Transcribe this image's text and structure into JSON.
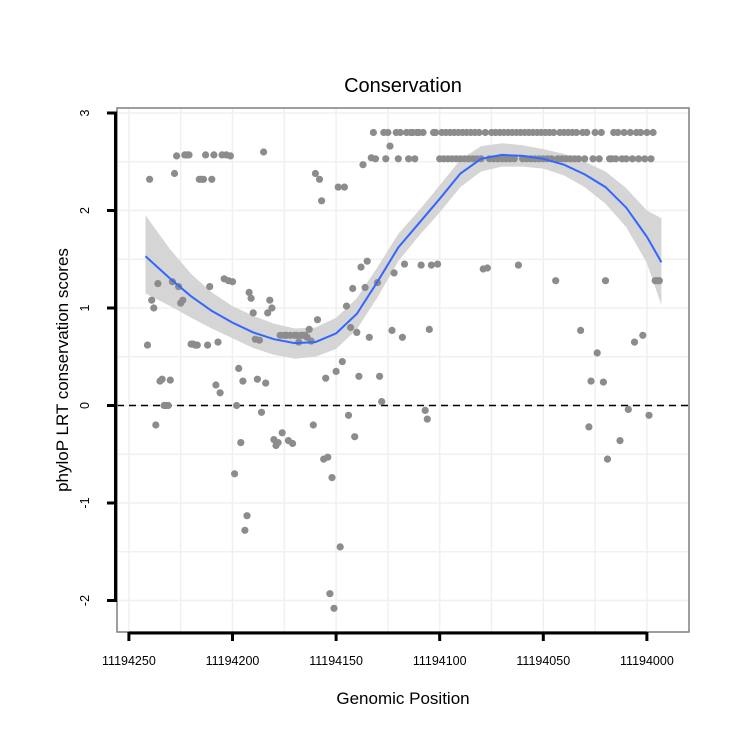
{
  "chart_data": {
    "type": "scatter",
    "title": "Conservation",
    "xlabel": "Genomic Position",
    "ylabel": "phyloP LRT conservation scores",
    "x_reversed": true,
    "xlim": [
      11194262,
      11193984
    ],
    "ylim": [
      -2.3,
      3
    ],
    "x_ticks": [
      11194250,
      11194200,
      11194150,
      11194100,
      11194050,
      11194000
    ],
    "x_tick_labels": [
      "11194250",
      "11194200",
      "11194150",
      "11194100",
      "11194050",
      "11194000"
    ],
    "y_ticks": [
      -2,
      -1,
      0,
      1,
      2,
      3
    ],
    "y_tick_labels": [
      "-2",
      "-1",
      "0",
      "1",
      "2",
      "3"
    ],
    "grid": true,
    "reference_line": {
      "y": 0,
      "style": "dashed",
      "color": "#000000"
    },
    "colors": {
      "points": "#8c8c8c",
      "smooth": "#3366ff",
      "band": "#d3d3d3",
      "panel_border": "#7f7f7f",
      "grid": "#f0f0f0"
    },
    "smooth": {
      "x": [
        11194242,
        11194230,
        11194220,
        11194210,
        11194200,
        11194190,
        11194180,
        11194170,
        11194160,
        11194150,
        11194140,
        11194130,
        11194120,
        11194110,
        11194100,
        11194090,
        11194080,
        11194070,
        11194060,
        11194050,
        11194040,
        11194030,
        11194020,
        11194010,
        11194000,
        11193993
      ],
      "y": [
        1.53,
        1.3,
        1.12,
        0.97,
        0.85,
        0.75,
        0.68,
        0.64,
        0.65,
        0.74,
        0.94,
        1.27,
        1.62,
        1.87,
        2.12,
        2.38,
        2.53,
        2.57,
        2.56,
        2.53,
        2.47,
        2.37,
        2.24,
        2.03,
        1.73,
        1.47
      ],
      "ci_upper": [
        1.95,
        1.6,
        1.35,
        1.16,
        1.02,
        0.92,
        0.84,
        0.79,
        0.8,
        0.9,
        1.1,
        1.42,
        1.76,
        2.0,
        2.26,
        2.52,
        2.66,
        2.69,
        2.67,
        2.63,
        2.58,
        2.5,
        2.4,
        2.23,
        2.0,
        1.92
      ],
      "ci_lower": [
        1.15,
        1.02,
        0.9,
        0.79,
        0.69,
        0.59,
        0.52,
        0.48,
        0.5,
        0.58,
        0.78,
        1.11,
        1.48,
        1.74,
        1.98,
        2.24,
        2.4,
        2.45,
        2.45,
        2.43,
        2.36,
        2.24,
        2.07,
        1.83,
        1.46,
        1.03
      ]
    },
    "points": [
      [
        11194241,
        0.62
      ],
      [
        11194240,
        2.32
      ],
      [
        11194239,
        1.08
      ],
      [
        11194238,
        1.0
      ],
      [
        11194237,
        -0.2
      ],
      [
        11194236,
        1.25
      ],
      [
        11194235,
        0.25
      ],
      [
        11194234,
        0.27
      ],
      [
        11194233,
        0.0
      ],
      [
        11194232,
        0.0
      ],
      [
        11194231,
        0.0
      ],
      [
        11194230,
        0.26
      ],
      [
        11194229,
        1.27
      ],
      [
        11194228,
        2.38
      ],
      [
        11194227,
        2.56
      ],
      [
        11194226,
        1.22
      ],
      [
        11194225,
        1.05
      ],
      [
        11194224,
        1.08
      ],
      [
        11194223,
        2.57
      ],
      [
        11194222,
        2.57
      ],
      [
        11194221,
        2.57
      ],
      [
        11194220,
        0.63
      ],
      [
        11194219,
        0.63
      ],
      [
        11194218,
        0.62
      ],
      [
        11194217,
        0.62
      ],
      [
        11194216,
        2.32
      ],
      [
        11194215,
        2.32
      ],
      [
        11194214,
        2.32
      ],
      [
        11194213,
        2.57
      ],
      [
        11194212,
        0.62
      ],
      [
        11194211,
        1.22
      ],
      [
        11194210,
        2.32
      ],
      [
        11194209,
        2.57
      ],
      [
        11194208,
        0.21
      ],
      [
        11194207,
        0.65
      ],
      [
        11194206,
        0.13
      ],
      [
        11194205,
        2.57
      ],
      [
        11194204,
        1.3
      ],
      [
        11194203,
        2.57
      ],
      [
        11194202,
        1.28
      ],
      [
        11194201,
        2.56
      ],
      [
        11194200,
        1.27
      ],
      [
        11194199,
        -0.7
      ],
      [
        11194198,
        0.0
      ],
      [
        11194197,
        0.38
      ],
      [
        11194196,
        -0.38
      ],
      [
        11194195,
        0.25
      ],
      [
        11194194,
        -1.28
      ],
      [
        11194193,
        -1.13
      ],
      [
        11194192,
        1.16
      ],
      [
        11194191,
        1.1
      ],
      [
        11194190,
        0.95
      ],
      [
        11194189,
        0.68
      ],
      [
        11194188,
        0.27
      ],
      [
        11194187,
        0.67
      ],
      [
        11194186,
        -0.07
      ],
      [
        11194185,
        2.6
      ],
      [
        11194184,
        0.23
      ],
      [
        11194183,
        0.95
      ],
      [
        11194182,
        1.08
      ],
      [
        11194181,
        1.0
      ],
      [
        11194180,
        -0.35
      ],
      [
        11194179,
        -0.41
      ],
      [
        11194178,
        -0.38
      ],
      [
        11194177,
        0.72
      ],
      [
        11194176,
        -0.28
      ],
      [
        11194175,
        0.72
      ],
      [
        11194174,
        0.72
      ],
      [
        11194173,
        -0.36
      ],
      [
        11194172,
        0.72
      ],
      [
        11194171,
        -0.39
      ],
      [
        11194170,
        0.72
      ],
      [
        11194169,
        0.72
      ],
      [
        11194168,
        0.65
      ],
      [
        11194167,
        0.72
      ],
      [
        11194166,
        0.72
      ],
      [
        11194165,
        0.72
      ],
      [
        11194164,
        0.7
      ],
      [
        11194163,
        0.78
      ],
      [
        11194162,
        0.66
      ],
      [
        11194161,
        -0.2
      ],
      [
        11194160,
        2.38
      ],
      [
        11194159,
        0.88
      ],
      [
        11194158,
        2.32
      ],
      [
        11194157,
        2.1
      ],
      [
        11194156,
        -0.55
      ],
      [
        11194155,
        0.28
      ],
      [
        11194154,
        -0.53
      ],
      [
        11194153,
        -1.93
      ],
      [
        11194152,
        -0.74
      ],
      [
        11194151,
        -2.08
      ],
      [
        11194150,
        0.35
      ],
      [
        11194149,
        2.24
      ],
      [
        11194148,
        -1.45
      ],
      [
        11194147,
        0.45
      ],
      [
        11194146,
        2.24
      ],
      [
        11194145,
        1.02
      ],
      [
        11194144,
        -0.1
      ],
      [
        11194143,
        0.8
      ],
      [
        11194142,
        1.2
      ],
      [
        11194141,
        -0.32
      ],
      [
        11194140,
        0.75
      ],
      [
        11194139,
        0.3
      ],
      [
        11194138,
        1.42
      ],
      [
        11194137,
        2.47
      ],
      [
        11194136,
        1.21
      ],
      [
        11194135,
        1.48
      ],
      [
        11194134,
        0.7
      ],
      [
        11194133,
        2.54
      ],
      [
        11194132,
        2.8
      ],
      [
        11194131,
        2.53
      ],
      [
        11194130,
        1.26
      ],
      [
        11194129,
        0.3
      ],
      [
        11194128,
        0.04
      ],
      [
        11194127,
        2.8
      ],
      [
        11194126,
        2.53
      ],
      [
        11194125,
        2.8
      ],
      [
        11194124,
        2.66
      ],
      [
        11194123,
        0.77
      ],
      [
        11194122,
        1.36
      ],
      [
        11194121,
        2.8
      ],
      [
        11194120,
        2.53
      ],
      [
        11194119,
        2.8
      ],
      [
        11194118,
        0.7
      ],
      [
        11194117,
        1.45
      ],
      [
        11194116,
        2.8
      ],
      [
        11194115,
        2.53
      ],
      [
        11194114,
        2.8
      ],
      [
        11194113,
        2.8
      ],
      [
        11194112,
        2.53
      ],
      [
        11194111,
        2.8
      ],
      [
        11194110,
        2.8
      ],
      [
        11194109,
        1.44
      ],
      [
        11194108,
        2.8
      ],
      [
        11194107,
        -0.05
      ],
      [
        11194106,
        -0.14
      ],
      [
        11194105,
        0.78
      ],
      [
        11194104,
        1.44
      ],
      [
        11194103,
        2.8
      ],
      [
        11194102,
        2.8
      ],
      [
        11194101,
        1.45
      ],
      [
        11194100,
        2.53
      ],
      [
        11194099,
        2.8
      ],
      [
        11194098,
        2.53
      ],
      [
        11194097,
        2.8
      ],
      [
        11194096,
        2.53
      ],
      [
        11194095,
        2.8
      ],
      [
        11194094,
        2.53
      ],
      [
        11194093,
        2.8
      ],
      [
        11194092,
        2.53
      ],
      [
        11194091,
        2.8
      ],
      [
        11194090,
        2.53
      ],
      [
        11194089,
        2.8
      ],
      [
        11194088,
        2.53
      ],
      [
        11194087,
        2.8
      ],
      [
        11194086,
        2.53
      ],
      [
        11194085,
        2.8
      ],
      [
        11194084,
        2.53
      ],
      [
        11194083,
        2.8
      ],
      [
        11194082,
        2.53
      ],
      [
        11194081,
        2.8
      ],
      [
        11194080,
        2.53
      ],
      [
        11194079,
        1.4
      ],
      [
        11194078,
        2.8
      ],
      [
        11194077,
        1.41
      ],
      [
        11194076,
        2.53
      ],
      [
        11194075,
        2.8
      ],
      [
        11194074,
        2.53
      ],
      [
        11194073,
        2.8
      ],
      [
        11194072,
        2.53
      ],
      [
        11194071,
        2.8
      ],
      [
        11194070,
        2.53
      ],
      [
        11194069,
        2.8
      ],
      [
        11194068,
        2.53
      ],
      [
        11194067,
        2.8
      ],
      [
        11194066,
        2.53
      ],
      [
        11194065,
        2.8
      ],
      [
        11194064,
        2.53
      ],
      [
        11194063,
        2.8
      ],
      [
        11194062,
        1.44
      ],
      [
        11194061,
        2.8
      ],
      [
        11194060,
        2.53
      ],
      [
        11194059,
        2.8
      ],
      [
        11194058,
        2.53
      ],
      [
        11194057,
        2.8
      ],
      [
        11194056,
        2.53
      ],
      [
        11194055,
        2.8
      ],
      [
        11194054,
        2.53
      ],
      [
        11194053,
        2.8
      ],
      [
        11194052,
        2.53
      ],
      [
        11194051,
        2.8
      ],
      [
        11194050,
        2.53
      ],
      [
        11194049,
        2.8
      ],
      [
        11194048,
        2.53
      ],
      [
        11194047,
        2.8
      ],
      [
        11194046,
        2.53
      ],
      [
        11194045,
        2.8
      ],
      [
        11194044,
        1.28
      ],
      [
        11194043,
        2.53
      ],
      [
        11194042,
        2.8
      ],
      [
        11194041,
        2.53
      ],
      [
        11194040,
        2.8
      ],
      [
        11194039,
        2.53
      ],
      [
        11194038,
        2.8
      ],
      [
        11194037,
        2.53
      ],
      [
        11194036,
        2.8
      ],
      [
        11194035,
        2.53
      ],
      [
        11194034,
        2.8
      ],
      [
        11194033,
        2.53
      ],
      [
        11194032,
        0.77
      ],
      [
        11194031,
        2.8
      ],
      [
        11194030,
        2.53
      ],
      [
        11194029,
        2.8
      ],
      [
        11194028,
        -0.22
      ],
      [
        11194027,
        0.25
      ],
      [
        11194026,
        2.53
      ],
      [
        11194025,
        2.8
      ],
      [
        11194024,
        0.54
      ],
      [
        11194023,
        2.53
      ],
      [
        11194022,
        2.8
      ],
      [
        11194021,
        0.24
      ],
      [
        11194020,
        1.28
      ],
      [
        11194019,
        -0.55
      ],
      [
        11194018,
        2.53
      ],
      [
        11194017,
        2.53
      ],
      [
        11194016,
        2.8
      ],
      [
        11194015,
        2.53
      ],
      [
        11194014,
        2.8
      ],
      [
        11194013,
        -0.36
      ],
      [
        11194012,
        2.53
      ],
      [
        11194011,
        2.8
      ],
      [
        11194010,
        2.53
      ],
      [
        11194009,
        -0.04
      ],
      [
        11194008,
        2.8
      ],
      [
        11194007,
        2.53
      ],
      [
        11194006,
        0.65
      ],
      [
        11194005,
        2.8
      ],
      [
        11194004,
        2.53
      ],
      [
        11194003,
        2.8
      ],
      [
        11194002,
        0.72
      ],
      [
        11194001,
        2.53
      ],
      [
        11194000,
        2.8
      ],
      [
        11193999,
        -0.1
      ],
      [
        11193998,
        2.53
      ],
      [
        11193997,
        2.8
      ],
      [
        11193996,
        1.28
      ],
      [
        11193995,
        1.28
      ],
      [
        11193994,
        1.28
      ]
    ]
  }
}
